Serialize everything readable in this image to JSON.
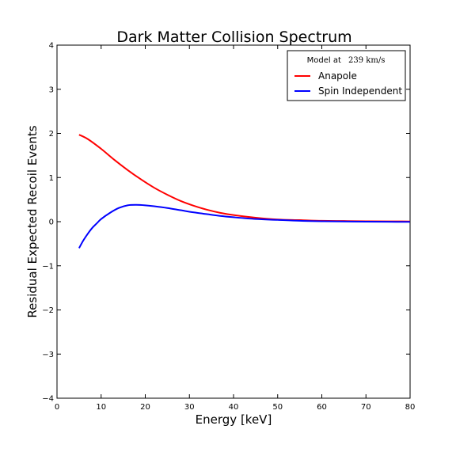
{
  "chart_data": {
    "type": "line",
    "title": "Dark Matter Collision Spectrum",
    "xlabel": "Energy [keV]",
    "ylabel": "Residual Expected Recoil Events",
    "xlim": [
      0,
      80
    ],
    "ylim": [
      -4,
      4
    ],
    "xticks": [
      0,
      10,
      20,
      30,
      40,
      50,
      60,
      70,
      80
    ],
    "yticks": [
      -4,
      -3,
      -2,
      -1,
      0,
      1,
      2,
      3,
      4
    ],
    "grid": false,
    "legend": {
      "placement": "top-right",
      "title_prefix": "Model at",
      "title_math": "239  km/s",
      "entries": [
        {
          "name": "Anapole",
          "color": "#ff0000"
        },
        {
          "name": "Spin Independent",
          "color": "#0000ff"
        }
      ]
    },
    "series": [
      {
        "name": "Anapole",
        "color": "#ff0000",
        "x": [
          5,
          7,
          10,
          13,
          16,
          19,
          22,
          25,
          28,
          31,
          34,
          37,
          40,
          45,
          50,
          55,
          60,
          65,
          70,
          75,
          80
        ],
        "y": [
          1.97,
          1.87,
          1.65,
          1.4,
          1.17,
          0.96,
          0.77,
          0.61,
          0.47,
          0.36,
          0.27,
          0.2,
          0.15,
          0.09,
          0.05,
          0.035,
          0.02,
          0.015,
          0.01,
          0.007,
          0.005
        ]
      },
      {
        "name": "Spin Independent",
        "color": "#0000ff",
        "x": [
          5,
          6,
          7,
          8,
          9,
          10,
          12,
          14,
          16,
          18,
          20,
          22,
          25,
          28,
          31,
          34,
          37,
          40,
          45,
          50,
          55,
          60,
          65,
          70,
          75,
          80
        ],
        "y": [
          -0.6,
          -0.42,
          -0.27,
          -0.14,
          -0.04,
          0.06,
          0.2,
          0.31,
          0.37,
          0.38,
          0.37,
          0.35,
          0.31,
          0.26,
          0.21,
          0.17,
          0.13,
          0.1,
          0.06,
          0.04,
          0.02,
          0.01,
          0.005,
          0.0,
          -0.003,
          -0.005
        ]
      }
    ]
  }
}
